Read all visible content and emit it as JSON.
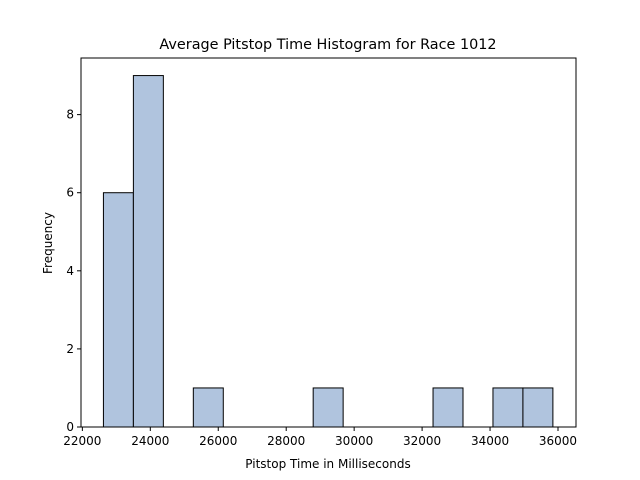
{
  "chart_data": {
    "type": "histogram",
    "title": "Average Pitstop Time Histogram for Race 1012",
    "x_label": "Pitstop Time in Milliseconds",
    "y_label": "Frequency",
    "bins": [
      22620,
      23502,
      24384,
      25266,
      26148,
      27030,
      27912,
      28794,
      29676,
      30558,
      31440,
      32322,
      33204,
      34086,
      34968,
      35850
    ],
    "values": [
      6,
      9,
      0,
      1,
      0,
      0,
      0,
      1,
      0,
      0,
      0,
      1,
      0,
      1,
      1
    ],
    "color": "#b0c4de",
    "edgecolor": "#000000",
    "xlim": [
      21960,
      36530
    ],
    "xticks": [
      22000,
      24000,
      26000,
      28000,
      30000,
      32000,
      34000,
      36000
    ],
    "ylim": [
      0,
      9.45
    ],
    "yticks": [
      0,
      2,
      4,
      6,
      8
    ]
  }
}
